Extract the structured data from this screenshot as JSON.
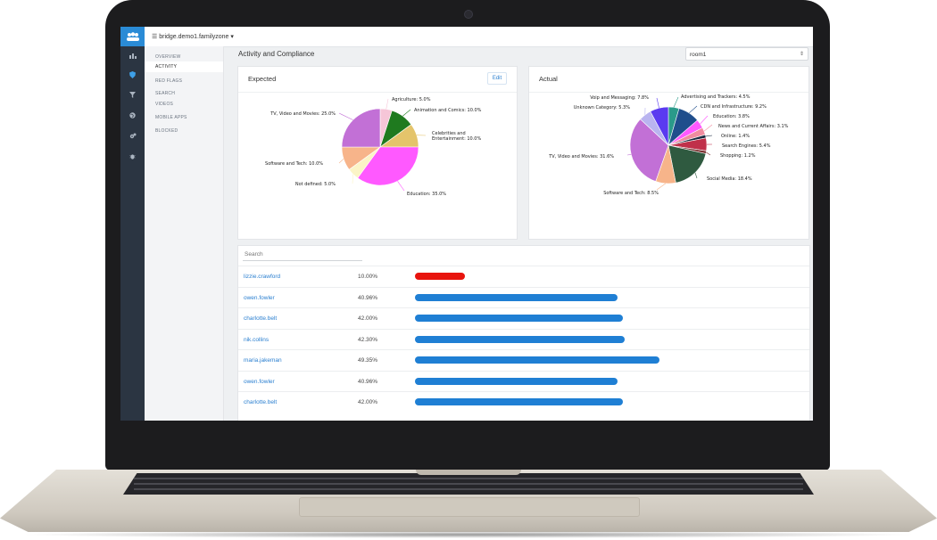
{
  "app": {
    "host": "bridge.demo1.familyzone",
    "logo_icon": "users-icon"
  },
  "sidebar": {
    "icons": [
      "bar-chart-icon",
      "shield-icon",
      "filter-icon",
      "globe-icon",
      "gears-icon",
      "bug-icon"
    ]
  },
  "subnav": {
    "items": [
      "OVERVIEW",
      "ACTIVITY",
      "RED FLAGS",
      "SEARCH",
      "VIDEOS",
      "MOBILE APPS",
      "BLOCKED"
    ],
    "active": "ACTIVITY"
  },
  "page": {
    "title": "Activity and Compliance",
    "room_select": "room1"
  },
  "expected": {
    "title": "Expected",
    "edit_label": "Edit"
  },
  "actual": {
    "title": "Actual"
  },
  "search": {
    "placeholder": "Search"
  },
  "colors": {
    "accent": "#2a8bd6",
    "bar_blue": "#1f7fd4",
    "bar_red": "#e8140e",
    "sidebar": "#2b3542"
  },
  "chart_data": [
    {
      "type": "pie",
      "title": "Expected",
      "slices": [
        {
          "label": "Agriculture: 5.0%",
          "value": 5.0,
          "color": "#f6c6d8"
        },
        {
          "label": "Animation and Comics: 10.0%",
          "value": 10.0,
          "color": "#1f7a1f"
        },
        {
          "label": "Celebrities and Entertainment: 10.0%",
          "value": 10.0,
          "color": "#e4c46b"
        },
        {
          "label": "Education: 35.0%",
          "value": 35.0,
          "color": "#ff59ff"
        },
        {
          "label": "Not defined: 5.0%",
          "value": 5.0,
          "color": "#fbf4c6"
        },
        {
          "label": "Software and Tech: 10.0%",
          "value": 10.0,
          "color": "#f7b48a"
        },
        {
          "label": "TV, Video and Movies: 25.0%",
          "value": 25.0,
          "color": "#c270d6"
        }
      ]
    },
    {
      "type": "pie",
      "title": "Actual",
      "slices": [
        {
          "label": "Advertising and Trackers: 4.5%",
          "value": 4.5,
          "color": "#2a9a8a"
        },
        {
          "label": "CDN and Infrastructure: 9.2%",
          "value": 9.2,
          "color": "#1f4e8c"
        },
        {
          "label": "Education: 3.8%",
          "value": 3.8,
          "color": "#ff59ff"
        },
        {
          "label": "News and Current Affairs: 3.1%",
          "value": 3.1,
          "color": "#f08ca0"
        },
        {
          "label": "Online: 1.4%",
          "value": 1.4,
          "color": "#1a2a40"
        },
        {
          "label": "Search Engines: 5.4%",
          "value": 5.4,
          "color": "#c0304a"
        },
        {
          "label": "Shopping: 1.2%",
          "value": 1.2,
          "color": "#7a3030"
        },
        {
          "label": "Social Media: 18.4%",
          "value": 18.4,
          "color": "#2f5a40"
        },
        {
          "label": "Software and Tech: 8.5%",
          "value": 8.5,
          "color": "#f7b48a"
        },
        {
          "label": "TV, Video and Movies: 31.6%",
          "value": 31.6,
          "color": "#c270d6"
        },
        {
          "label": "Unknown Category: 5.3%",
          "value": 5.3,
          "color": "#b9b4f0"
        },
        {
          "label": "Voip and Messaging: 7.8%",
          "value": 7.8,
          "color": "#5a3af0"
        }
      ]
    }
  ],
  "rows": [
    {
      "user": "lizzie.crawford",
      "pct": "10.00%",
      "value": 10.0,
      "color": "#e8140e"
    },
    {
      "user": "owen.fowler",
      "pct": "40.96%",
      "value": 40.96,
      "color": "#1f7fd4"
    },
    {
      "user": "charlotte.belt",
      "pct": "42.00%",
      "value": 42.0,
      "color": "#1f7fd4"
    },
    {
      "user": "nik.collins",
      "pct": "42.30%",
      "value": 42.3,
      "color": "#1f7fd4"
    },
    {
      "user": "maria.jakeman",
      "pct": "49.35%",
      "value": 49.35,
      "color": "#1f7fd4"
    },
    {
      "user": "owen.fowler",
      "pct": "40.96%",
      "value": 40.96,
      "color": "#1f7fd4"
    },
    {
      "user": "charlotte.belt",
      "pct": "42.00%",
      "value": 42.0,
      "color": "#1f7fd4"
    }
  ]
}
